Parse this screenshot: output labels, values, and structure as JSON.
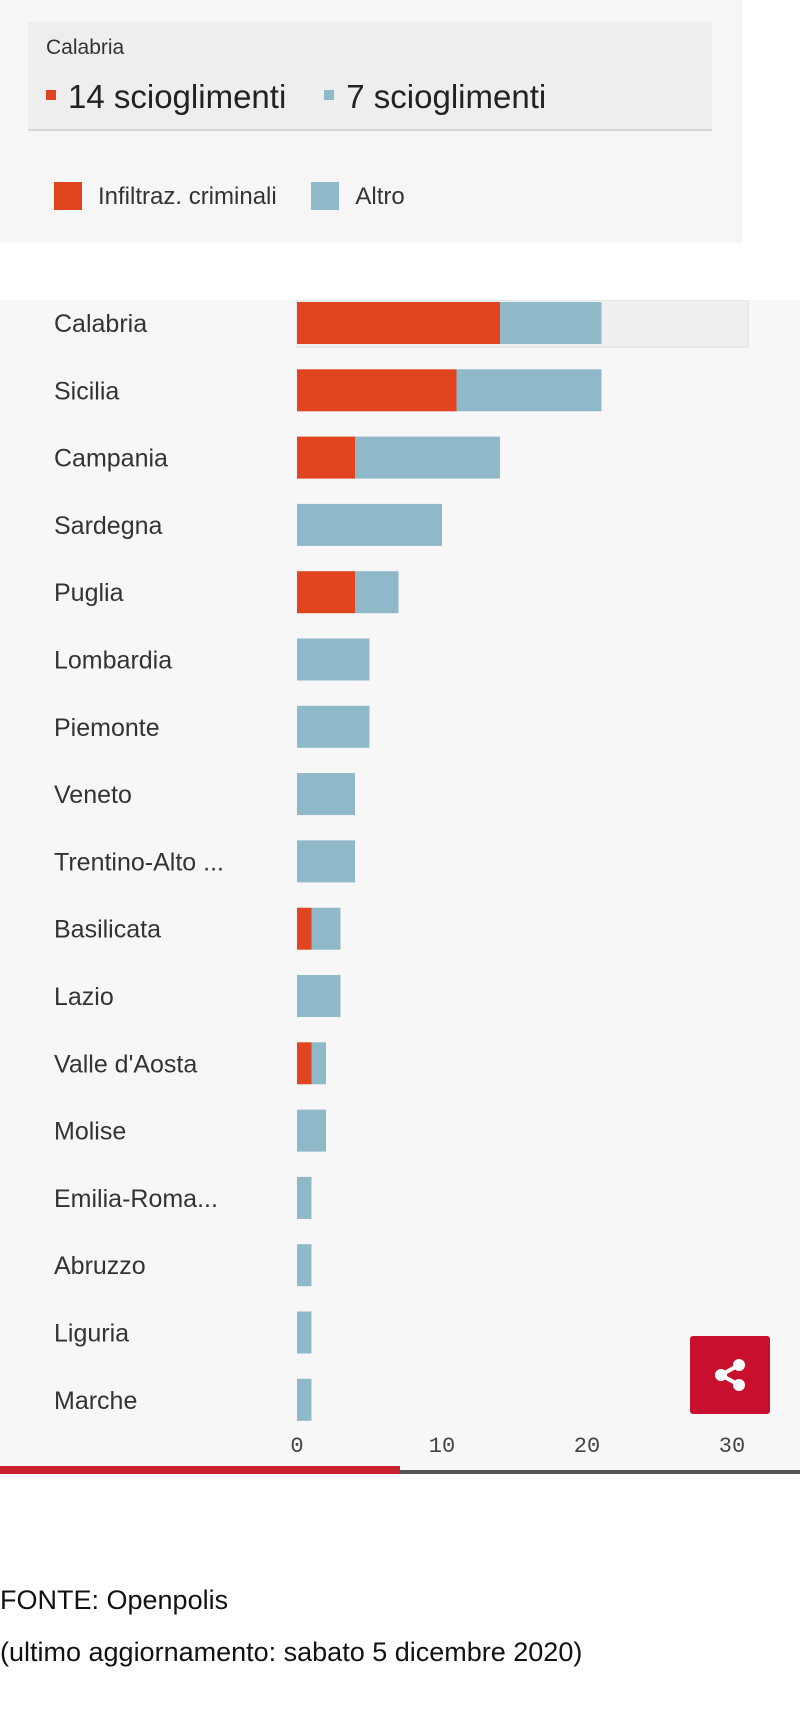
{
  "tooltip": {
    "title": "Calabria",
    "segments": [
      {
        "text": "14 scioglimenti",
        "color": "#e04520"
      },
      {
        "text": "7 scioglimenti",
        "color": "#8fb8c8"
      }
    ]
  },
  "legend": [
    {
      "label": "Infiltraz. criminali",
      "color": "#e04520"
    },
    {
      "label": "Altro",
      "color": "#8fb8c8"
    }
  ],
  "chart_data": {
    "type": "bar",
    "orientation": "horizontal",
    "stacked": true,
    "categories": [
      "Calabria",
      "Sicilia",
      "Campania",
      "Sardegna",
      "Puglia",
      "Lombardia",
      "Piemonte",
      "Veneto",
      "Trentino-Alto ...",
      "Basilicata",
      "Lazio",
      "Valle d'Aosta",
      "Molise",
      "Emilia-Roma...",
      "Abruzzo",
      "Liguria",
      "Marche"
    ],
    "series": [
      {
        "name": "Infiltraz. criminali",
        "color": "#e04520",
        "values": [
          14,
          11,
          4,
          0,
          4,
          0,
          0,
          0,
          0,
          1,
          0,
          1,
          0,
          0,
          0,
          0,
          0
        ]
      },
      {
        "name": "Altro",
        "color": "#8fb8c8",
        "values": [
          7,
          10,
          10,
          10,
          3,
          5,
          5,
          4,
          4,
          2,
          3,
          1,
          2,
          1,
          1,
          1,
          1
        ]
      }
    ],
    "xlim": [
      0,
      30
    ],
    "xticks": [
      0,
      10,
      20,
      30
    ],
    "highlighted": "Calabria",
    "grid": false,
    "legend": "top-left"
  },
  "share_icon": "share-icon",
  "footer": {
    "source": "FONTE: Openpolis",
    "updated": "(ultimo aggiornamento: sabato 5 dicembre 2020)"
  },
  "progress": 0.5
}
